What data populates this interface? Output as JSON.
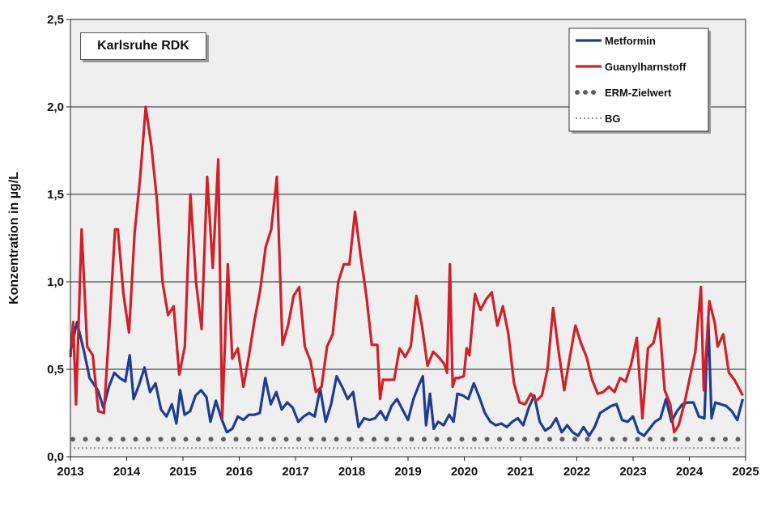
{
  "chart_data": {
    "type": "line",
    "title": "Karlsruhe RDK",
    "xlabel": "",
    "ylabel": "Konzentration in µg/L",
    "xlim": [
      2013,
      2025
    ],
    "ylim": [
      0,
      2.5
    ],
    "x_ticks": [
      "2013",
      "2014",
      "2015",
      "2016",
      "2017",
      "2018",
      "2019",
      "2020",
      "2021",
      "2022",
      "2023",
      "2024",
      "2025"
    ],
    "y_ticks": [
      "0,0",
      "0,5",
      "1,0",
      "1,5",
      "2,0",
      "2,5"
    ],
    "grid": "horizontal",
    "legend_position": "top-right",
    "series": [
      {
        "name": "Metformin",
        "style": "line",
        "color": "#1f3c8f",
        "points": [
          [
            2013.0,
            0.6
          ],
          [
            2013.12,
            0.77
          ],
          [
            2013.25,
            0.6
          ],
          [
            2013.35,
            0.45
          ],
          [
            2013.5,
            0.38
          ],
          [
            2013.6,
            0.28
          ],
          [
            2013.7,
            0.4
          ],
          [
            2013.8,
            0.48
          ],
          [
            2013.9,
            0.45
          ],
          [
            2014.0,
            0.43
          ],
          [
            2014.08,
            0.58
          ],
          [
            2014.15,
            0.33
          ],
          [
            2014.25,
            0.41
          ],
          [
            2014.35,
            0.51
          ],
          [
            2014.45,
            0.37
          ],
          [
            2014.55,
            0.42
          ],
          [
            2014.65,
            0.27
          ],
          [
            2014.75,
            0.23
          ],
          [
            2014.85,
            0.3
          ],
          [
            2014.93,
            0.19
          ],
          [
            2015.0,
            0.38
          ],
          [
            2015.08,
            0.24
          ],
          [
            2015.18,
            0.26
          ],
          [
            2015.28,
            0.35
          ],
          [
            2015.38,
            0.38
          ],
          [
            2015.48,
            0.34
          ],
          [
            2015.55,
            0.2
          ],
          [
            2015.65,
            0.32
          ],
          [
            2015.75,
            0.22
          ],
          [
            2015.85,
            0.14
          ],
          [
            2015.95,
            0.16
          ],
          [
            2016.05,
            0.23
          ],
          [
            2016.15,
            0.21
          ],
          [
            2016.25,
            0.24
          ],
          [
            2016.35,
            0.24
          ],
          [
            2016.45,
            0.25
          ],
          [
            2016.55,
            0.45
          ],
          [
            2016.65,
            0.3
          ],
          [
            2016.75,
            0.37
          ],
          [
            2016.85,
            0.27
          ],
          [
            2016.95,
            0.31
          ],
          [
            2017.05,
            0.28
          ],
          [
            2017.15,
            0.2
          ],
          [
            2017.25,
            0.23
          ],
          [
            2017.35,
            0.25
          ],
          [
            2017.45,
            0.23
          ],
          [
            2017.55,
            0.39
          ],
          [
            2017.65,
            0.2
          ],
          [
            2017.75,
            0.3
          ],
          [
            2017.85,
            0.46
          ],
          [
            2017.95,
            0.4
          ],
          [
            2018.05,
            0.33
          ],
          [
            2018.15,
            0.37
          ],
          [
            2018.25,
            0.17
          ],
          [
            2018.35,
            0.22
          ],
          [
            2018.45,
            0.21
          ],
          [
            2018.55,
            0.22
          ],
          [
            2018.65,
            0.26
          ],
          [
            2018.75,
            0.21
          ],
          [
            2018.85,
            0.29
          ],
          [
            2018.95,
            0.33
          ],
          [
            2019.05,
            0.27
          ],
          [
            2019.15,
            0.21
          ],
          [
            2019.25,
            0.33
          ],
          [
            2019.35,
            0.41
          ],
          [
            2019.42,
            0.46
          ],
          [
            2019.48,
            0.18
          ],
          [
            2019.55,
            0.36
          ],
          [
            2019.62,
            0.16
          ],
          [
            2019.7,
            0.2
          ],
          [
            2019.8,
            0.18
          ],
          [
            2019.9,
            0.24
          ],
          [
            2019.98,
            0.2
          ],
          [
            2020.05,
            0.36
          ],
          [
            2020.15,
            0.35
          ],
          [
            2020.25,
            0.33
          ],
          [
            2020.35,
            0.42
          ],
          [
            2020.45,
            0.34
          ],
          [
            2020.55,
            0.25
          ],
          [
            2020.65,
            0.2
          ],
          [
            2020.75,
            0.18
          ],
          [
            2020.85,
            0.19
          ],
          [
            2020.95,
            0.17
          ],
          [
            2021.05,
            0.2
          ],
          [
            2021.15,
            0.22
          ],
          [
            2021.25,
            0.18
          ],
          [
            2021.35,
            0.28
          ],
          [
            2021.45,
            0.35
          ],
          [
            2021.55,
            0.2
          ],
          [
            2021.65,
            0.15
          ],
          [
            2021.75,
            0.17
          ],
          [
            2021.85,
            0.22
          ],
          [
            2021.95,
            0.14
          ],
          [
            2022.05,
            0.18
          ],
          [
            2022.15,
            0.14
          ],
          [
            2022.25,
            0.12
          ],
          [
            2022.35,
            0.17
          ],
          [
            2022.45,
            0.12
          ],
          [
            2022.55,
            0.17
          ],
          [
            2022.65,
            0.25
          ],
          [
            2022.75,
            0.27
          ],
          [
            2022.85,
            0.29
          ],
          [
            2022.95,
            0.3
          ],
          [
            2023.05,
            0.21
          ],
          [
            2023.15,
            0.2
          ],
          [
            2023.25,
            0.23
          ],
          [
            2023.35,
            0.14
          ],
          [
            2023.45,
            0.12
          ],
          [
            2023.55,
            0.16
          ],
          [
            2023.65,
            0.2
          ],
          [
            2023.75,
            0.22
          ],
          [
            2023.85,
            0.33
          ],
          [
            2023.95,
            0.2
          ],
          [
            2024.05,
            0.26
          ],
          [
            2024.15,
            0.3
          ],
          [
            2024.25,
            0.31
          ],
          [
            2024.35,
            0.31
          ],
          [
            2024.45,
            0.23
          ],
          [
            2024.55,
            0.22
          ],
          [
            2024.62,
            0.8
          ],
          [
            2024.68,
            0.22
          ],
          [
            2024.75,
            0.31
          ],
          [
            2024.85,
            0.3
          ],
          [
            2024.95,
            0.29
          ],
          [
            2025.05,
            0.26
          ],
          [
            2025.15,
            0.21
          ],
          [
            2025.25,
            0.33
          ]
        ]
      },
      {
        "name": "Guanylharnstoff",
        "style": "line",
        "color": "#d0202a",
        "points": []
      },
      {
        "name": "ERM-Zielwert",
        "style": "dotted-large",
        "color": "#606060",
        "points": [
          [
            2013,
            0.1
          ],
          [
            2025,
            0.1
          ]
        ]
      },
      {
        "name": "BG",
        "style": "dotted-small",
        "color": "#909090",
        "points": [
          [
            2013,
            0.05
          ],
          [
            2025,
            0.05
          ]
        ]
      }
    ]
  }
}
